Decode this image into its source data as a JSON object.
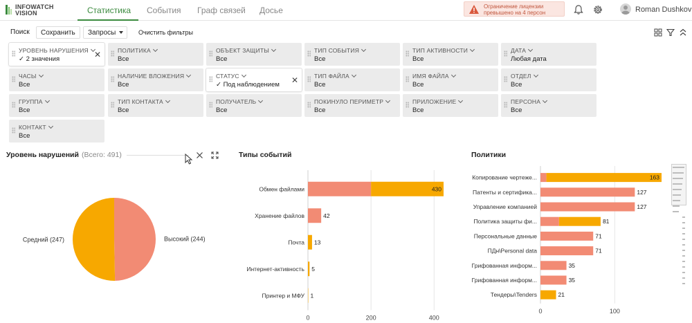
{
  "header": {
    "logo_line1": "INFOWATCH",
    "logo_line2": "VISION",
    "tabs": [
      {
        "label": "Статистика",
        "active": true
      },
      {
        "label": "События",
        "active": false
      },
      {
        "label": "Граф связей",
        "active": false
      },
      {
        "label": "Досье",
        "active": false
      }
    ],
    "license_alert_line1": "Ограничение лицензии",
    "license_alert_line2": "превышено на 4 персон",
    "user_name": "Roman Dushkov"
  },
  "toolbar": {
    "search_label": "Поиск",
    "save_label": "Сохранить",
    "queries_label": "Запросы",
    "clear_filters_label": "Очистить фильтры"
  },
  "filters": [
    {
      "label": "УРОВЕНЬ НАРУШЕНИЯ",
      "value": "✓ 2 значения",
      "active": true
    },
    {
      "label": "ПОЛИТИКА",
      "value": "Все"
    },
    {
      "label": "ОБЪЕКТ ЗАЩИТЫ",
      "value": "Все"
    },
    {
      "label": "ТИП СОБЫТИЯ",
      "value": "Все"
    },
    {
      "label": "ТИП АКТИВНОСТИ",
      "value": "Все"
    },
    {
      "label": "ДАТА",
      "value": "Любая дата"
    },
    {
      "label": "ЧАСЫ",
      "value": "Все"
    },
    {
      "label": "НАЛИЧИЕ ВЛОЖЕНИЯ",
      "value": "Все"
    },
    {
      "label": "СТАТУС",
      "value": "✓ Под наблюдением",
      "active": true
    },
    {
      "label": "ТИП ФАЙЛА",
      "value": "Все"
    },
    {
      "label": "ИМЯ ФАЙЛА",
      "value": "Все"
    },
    {
      "label": "ОТДЕЛ",
      "value": "Все"
    },
    {
      "label": "ГРУППА",
      "value": "Все"
    },
    {
      "label": "ТИП КОНТАКТА",
      "value": "Все"
    },
    {
      "label": "ПОЛУЧАТЕЛЬ",
      "value": "Все"
    },
    {
      "label": "ПОКИНУЛО ПЕРИМЕТР",
      "value": "Все"
    },
    {
      "label": "ПРИЛОЖЕНИЕ",
      "value": "Все"
    },
    {
      "label": "ПЕРСОНА",
      "value": "Все"
    },
    {
      "label": "КОНТАКТ",
      "value": "Все"
    }
  ],
  "panels": {
    "violations": {
      "title": "Уровень нарушений",
      "subtitle": "(Всего: 491)"
    },
    "events": {
      "title": "Типы событий"
    },
    "policies": {
      "title": "Политики"
    }
  },
  "colors": {
    "high": "#f28b74",
    "medium": "#f7a800",
    "accent": "#3b8a3e",
    "alert": "#d9573b"
  },
  "chart_data": [
    {
      "type": "pie",
      "title": "Уровень нарушений",
      "slices": [
        {
          "label": "Высокий (244)",
          "value": 244,
          "color": "#f28b74"
        },
        {
          "label": "Средний (247)",
          "value": 247,
          "color": "#f7a800"
        }
      ]
    },
    {
      "type": "bar",
      "orientation": "horizontal",
      "stacked": true,
      "title": "Типы событий",
      "categories": [
        "Обмен файлами",
        "Хранение файлов",
        "Почта",
        "Интернет-активность",
        "Принтер и МФУ"
      ],
      "series": [
        {
          "values": [
            200,
            42,
            0,
            0,
            0
          ],
          "color": "#f28b74"
        },
        {
          "values": [
            230,
            0,
            13,
            5,
            1
          ],
          "color": "#f7a800"
        }
      ],
      "totals": [
        430,
        42,
        13,
        5,
        1
      ],
      "xlim": [
        0,
        430
      ],
      "xticks": [
        0,
        200,
        400
      ],
      "grid": true
    },
    {
      "type": "bar",
      "orientation": "horizontal",
      "stacked": true,
      "title": "Политики",
      "categories": [
        "Копирование чертеже...",
        "Патенты и сертифика...",
        "Управление компанией",
        "Политика защиты фи...",
        "Персональные данные",
        "ПДн\\Personal data",
        "Грифованная информ...",
        "Грифованная информ...",
        "Тендеры\\Tenders"
      ],
      "series": [
        {
          "values": [
            8,
            127,
            127,
            25,
            71,
            71,
            35,
            35,
            0
          ],
          "color": "#f28b74"
        },
        {
          "values": [
            155,
            0,
            0,
            56,
            0,
            0,
            0,
            0,
            21
          ],
          "color": "#f7a800"
        }
      ],
      "totals": [
        163,
        127,
        127,
        81,
        71,
        71,
        35,
        35,
        21
      ],
      "xlim": [
        0,
        163
      ],
      "xticks": [
        0,
        100
      ],
      "grid": true
    }
  ]
}
